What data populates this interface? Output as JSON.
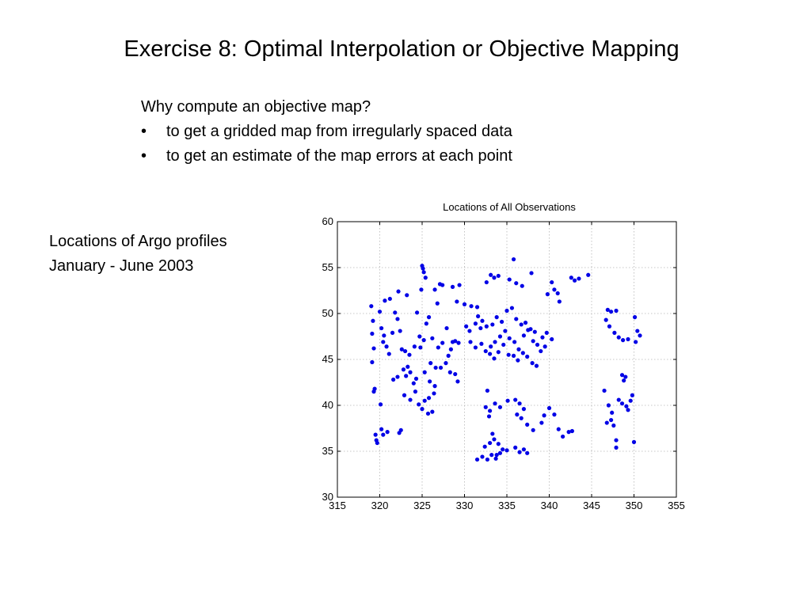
{
  "slide": {
    "title": "Exercise 8: Optimal Interpolation or Objective Mapping",
    "intro": "Why compute an objective map?",
    "bullets": [
      "to get a gridded map from irregularly spaced data",
      "to get an estimate of the map errors at each point"
    ],
    "bullet_glyph": "•",
    "caption_line1": "Locations of Argo profiles",
    "caption_line2": "January -  June 2003"
  },
  "chart_data": {
    "type": "scatter",
    "title": "Locations of All Observations",
    "xlabel": "",
    "ylabel": "",
    "xlim": [
      315,
      355
    ],
    "ylim": [
      30,
      60
    ],
    "xticks": [
      315,
      320,
      325,
      330,
      335,
      340,
      345,
      350,
      355
    ],
    "yticks": [
      30,
      35,
      40,
      45,
      50,
      55,
      60
    ],
    "grid": true,
    "marker_color": "#0000e6",
    "series": [
      {
        "points": [
          [
            319.0,
            50.8
          ],
          [
            319.2,
            49.2
          ],
          [
            319.1,
            47.8
          ],
          [
            319.3,
            46.2
          ],
          [
            319.1,
            44.7
          ],
          [
            319.4,
            41.8
          ],
          [
            319.3,
            41.5
          ],
          [
            319.5,
            36.8
          ],
          [
            319.6,
            36.2
          ],
          [
            319.7,
            35.9
          ],
          [
            320.2,
            37.4
          ],
          [
            320.4,
            36.8
          ],
          [
            320.9,
            37.1
          ],
          [
            322.3,
            37.0
          ],
          [
            322.5,
            37.3
          ],
          [
            320.1,
            40.1
          ],
          [
            320.0,
            50.2
          ],
          [
            320.2,
            48.4
          ],
          [
            320.5,
            47.6
          ],
          [
            320.8,
            46.4
          ],
          [
            321.1,
            45.6
          ],
          [
            320.6,
            51.4
          ],
          [
            321.2,
            51.6
          ],
          [
            321.8,
            50.1
          ],
          [
            322.1,
            49.4
          ],
          [
            322.4,
            48.1
          ],
          [
            322.6,
            46.1
          ],
          [
            323.0,
            45.9
          ],
          [
            321.5,
            47.9
          ],
          [
            320.4,
            46.9
          ],
          [
            321.6,
            42.8
          ],
          [
            322.1,
            43.1
          ],
          [
            322.8,
            43.9
          ],
          [
            323.1,
            43.2
          ],
          [
            323.6,
            43.6
          ],
          [
            324.0,
            42.4
          ],
          [
            324.3,
            42.9
          ],
          [
            323.3,
            44.2
          ],
          [
            322.9,
            41.1
          ],
          [
            323.6,
            40.6
          ],
          [
            324.2,
            41.5
          ],
          [
            324.6,
            40.1
          ],
          [
            325.0,
            39.6
          ],
          [
            325.3,
            40.5
          ],
          [
            325.7,
            39.1
          ],
          [
            326.2,
            39.3
          ],
          [
            325.8,
            40.8
          ],
          [
            326.4,
            41.3
          ],
          [
            325.9,
            42.6
          ],
          [
            326.5,
            42.1
          ],
          [
            325.3,
            43.6
          ],
          [
            326.0,
            44.6
          ],
          [
            326.6,
            44.1
          ],
          [
            322.2,
            52.4
          ],
          [
            323.2,
            52.0
          ],
          [
            324.4,
            50.1
          ],
          [
            324.7,
            47.5
          ],
          [
            325.2,
            47.1
          ],
          [
            324.1,
            46.4
          ],
          [
            324.8,
            46.3
          ],
          [
            323.5,
            45.5
          ],
          [
            325.5,
            48.9
          ],
          [
            325.8,
            49.6
          ],
          [
            324.9,
            52.6
          ],
          [
            325.1,
            54.9
          ],
          [
            325.0,
            55.2
          ],
          [
            325.2,
            54.5
          ],
          [
            325.4,
            53.9
          ],
          [
            326.5,
            52.6
          ],
          [
            327.1,
            53.2
          ],
          [
            327.4,
            53.1
          ],
          [
            326.8,
            51.1
          ],
          [
            327.9,
            48.4
          ],
          [
            326.2,
            47.3
          ],
          [
            327.4,
            46.8
          ],
          [
            326.9,
            46.3
          ],
          [
            328.1,
            45.4
          ],
          [
            328.4,
            46.1
          ],
          [
            328.6,
            46.9
          ],
          [
            328.9,
            47.0
          ],
          [
            329.3,
            46.8
          ],
          [
            327.2,
            44.1
          ],
          [
            327.8,
            44.6
          ],
          [
            328.3,
            43.6
          ],
          [
            328.9,
            43.4
          ],
          [
            329.2,
            42.6
          ],
          [
            328.6,
            52.9
          ],
          [
            329.4,
            53.1
          ],
          [
            329.1,
            51.3
          ],
          [
            330.0,
            51.0
          ],
          [
            330.8,
            50.8
          ],
          [
            331.5,
            50.7
          ],
          [
            330.2,
            48.6
          ],
          [
            330.6,
            48.1
          ],
          [
            331.3,
            48.9
          ],
          [
            331.9,
            48.4
          ],
          [
            331.6,
            49.7
          ],
          [
            332.1,
            49.2
          ],
          [
            332.6,
            48.6
          ],
          [
            330.7,
            46.9
          ],
          [
            331.3,
            46.3
          ],
          [
            332.0,
            46.7
          ],
          [
            332.5,
            45.9
          ],
          [
            333.1,
            46.4
          ],
          [
            333.6,
            46.9
          ],
          [
            334.2,
            47.5
          ],
          [
            334.8,
            48.1
          ],
          [
            335.3,
            47.3
          ],
          [
            335.9,
            46.9
          ],
          [
            336.4,
            46.1
          ],
          [
            337.0,
            47.6
          ],
          [
            337.5,
            48.2
          ],
          [
            338.1,
            47.0
          ],
          [
            338.6,
            46.6
          ],
          [
            339.2,
            47.4
          ],
          [
            339.7,
            47.9
          ],
          [
            340.3,
            47.2
          ],
          [
            333.3,
            48.8
          ],
          [
            333.8,
            49.6
          ],
          [
            334.4,
            49.1
          ],
          [
            335.0,
            50.3
          ],
          [
            335.6,
            50.6
          ],
          [
            336.1,
            49.4
          ],
          [
            336.7,
            48.8
          ],
          [
            337.2,
            49.0
          ],
          [
            337.8,
            48.3
          ],
          [
            338.3,
            48.0
          ],
          [
            333.0,
            45.6
          ],
          [
            333.5,
            45.1
          ],
          [
            334.0,
            45.8
          ],
          [
            334.6,
            46.6
          ],
          [
            335.2,
            45.5
          ],
          [
            335.8,
            45.4
          ],
          [
            336.3,
            44.9
          ],
          [
            336.9,
            45.7
          ],
          [
            337.4,
            45.3
          ],
          [
            338.0,
            44.6
          ],
          [
            338.5,
            44.3
          ],
          [
            339.0,
            45.9
          ],
          [
            339.5,
            46.4
          ],
          [
            333.1,
            54.2
          ],
          [
            333.5,
            53.9
          ],
          [
            334.0,
            54.1
          ],
          [
            332.6,
            53.4
          ],
          [
            335.3,
            53.7
          ],
          [
            336.1,
            53.3
          ],
          [
            336.8,
            53.0
          ],
          [
            335.8,
            55.9
          ],
          [
            337.9,
            54.4
          ],
          [
            340.3,
            53.4
          ],
          [
            340.6,
            52.6
          ],
          [
            339.8,
            52.1
          ],
          [
            341.2,
            51.3
          ],
          [
            341.0,
            52.2
          ],
          [
            342.6,
            53.9
          ],
          [
            343.0,
            53.6
          ],
          [
            343.5,
            53.8
          ],
          [
            344.6,
            54.2
          ],
          [
            346.9,
            50.4
          ],
          [
            347.3,
            50.2
          ],
          [
            347.9,
            50.3
          ],
          [
            346.7,
            49.3
          ],
          [
            347.1,
            48.6
          ],
          [
            347.7,
            47.9
          ],
          [
            348.2,
            47.4
          ],
          [
            348.7,
            47.1
          ],
          [
            349.3,
            47.2
          ],
          [
            350.1,
            49.6
          ],
          [
            350.4,
            48.1
          ],
          [
            350.7,
            47.6
          ],
          [
            350.2,
            46.9
          ],
          [
            346.5,
            41.6
          ],
          [
            347.0,
            40.0
          ],
          [
            347.4,
            39.2
          ],
          [
            347.3,
            38.4
          ],
          [
            346.8,
            38.1
          ],
          [
            347.6,
            37.8
          ],
          [
            347.9,
            36.2
          ],
          [
            348.2,
            40.6
          ],
          [
            348.6,
            40.2
          ],
          [
            349.1,
            39.9
          ],
          [
            349.6,
            40.5
          ],
          [
            349.8,
            41.1
          ],
          [
            349.3,
            39.5
          ],
          [
            348.6,
            43.3
          ],
          [
            349.0,
            43.1
          ],
          [
            348.8,
            42.7
          ],
          [
            347.9,
            35.4
          ],
          [
            350.0,
            36.0
          ],
          [
            332.7,
            41.6
          ],
          [
            332.5,
            39.8
          ],
          [
            333.0,
            39.4
          ],
          [
            333.6,
            40.2
          ],
          [
            332.9,
            38.8
          ],
          [
            334.2,
            39.8
          ],
          [
            335.1,
            40.5
          ],
          [
            336.0,
            40.6
          ],
          [
            336.5,
            40.2
          ],
          [
            337.0,
            39.6
          ],
          [
            336.2,
            39.0
          ],
          [
            336.7,
            38.6
          ],
          [
            337.4,
            37.9
          ],
          [
            338.1,
            37.3
          ],
          [
            339.1,
            38.1
          ],
          [
            339.4,
            38.9
          ],
          [
            340.0,
            39.7
          ],
          [
            340.6,
            39.0
          ],
          [
            341.1,
            37.4
          ],
          [
            341.6,
            36.6
          ],
          [
            342.3,
            37.1
          ],
          [
            342.7,
            37.2
          ],
          [
            331.5,
            34.1
          ],
          [
            332.1,
            34.4
          ],
          [
            332.7,
            34.1
          ],
          [
            333.2,
            34.6
          ],
          [
            333.7,
            34.2
          ],
          [
            334.2,
            34.8
          ],
          [
            332.4,
            35.5
          ],
          [
            333.0,
            35.9
          ],
          [
            333.5,
            36.3
          ],
          [
            334.0,
            35.8
          ],
          [
            334.5,
            35.2
          ],
          [
            335.0,
            35.1
          ],
          [
            333.3,
            36.9
          ],
          [
            333.8,
            34.6
          ],
          [
            336.5,
            34.9
          ],
          [
            337.0,
            35.2
          ],
          [
            337.4,
            34.8
          ],
          [
            336.0,
            35.4
          ]
        ]
      }
    ]
  }
}
